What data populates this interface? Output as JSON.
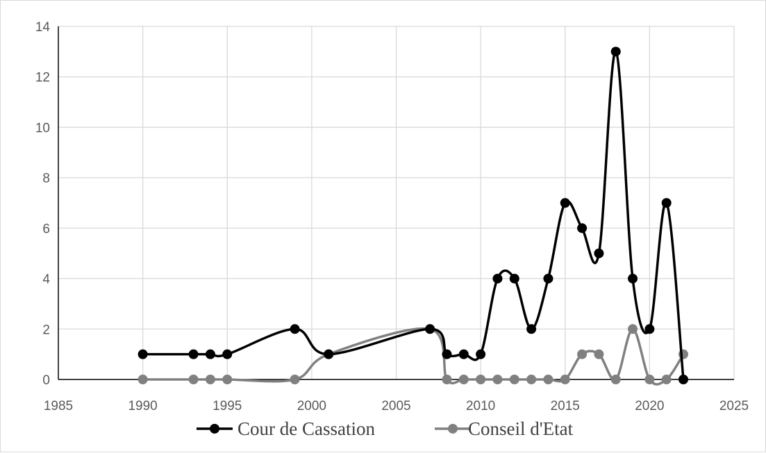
{
  "chart_data": {
    "type": "line",
    "title": "",
    "xlabel": "",
    "ylabel": "",
    "xlim": [
      1985,
      2025
    ],
    "ylim": [
      0,
      14
    ],
    "x_ticks": [
      1985,
      1990,
      1995,
      2000,
      2005,
      2010,
      2015,
      2020,
      2025
    ],
    "y_ticks": [
      0,
      2,
      4,
      6,
      8,
      10,
      12,
      14
    ],
    "x_tick_labels": [
      "1985",
      "1990",
      "1995",
      "2000",
      "2005",
      "2010",
      "2015",
      "2020",
      "2025"
    ],
    "y_tick_labels": [
      "0",
      "2",
      "4",
      "6",
      "8",
      "10",
      "12",
      "14"
    ],
    "grid": true,
    "smooth": true,
    "legend_position": "bottom",
    "series": [
      {
        "name": "Cour de Cassation",
        "color": "#000000",
        "points": [
          [
            1990,
            1
          ],
          [
            1993,
            1
          ],
          [
            1994,
            1
          ],
          [
            1995,
            1
          ],
          [
            1999,
            2
          ],
          [
            2001,
            1
          ],
          [
            2007,
            2
          ],
          [
            2008,
            1
          ],
          [
            2009,
            1
          ],
          [
            2010,
            1
          ],
          [
            2011,
            4
          ],
          [
            2012,
            4
          ],
          [
            2013,
            2
          ],
          [
            2014,
            4
          ],
          [
            2015,
            7
          ],
          [
            2016,
            6
          ],
          [
            2017,
            5
          ],
          [
            2018,
            13
          ],
          [
            2019,
            4
          ],
          [
            2020,
            2
          ],
          [
            2021,
            7
          ],
          [
            2022,
            0
          ]
        ]
      },
      {
        "name": "Conseil d'Etat",
        "color": "#808080",
        "points": [
          [
            1990,
            0
          ],
          [
            1993,
            0
          ],
          [
            1994,
            0
          ],
          [
            1995,
            0
          ],
          [
            1999,
            0
          ],
          [
            2001,
            1
          ],
          [
            2007,
            2
          ],
          [
            2008,
            0
          ],
          [
            2009,
            0
          ],
          [
            2010,
            0
          ],
          [
            2011,
            0
          ],
          [
            2012,
            0
          ],
          [
            2013,
            0
          ],
          [
            2014,
            0
          ],
          [
            2015,
            0
          ],
          [
            2016,
            1
          ],
          [
            2017,
            1
          ],
          [
            2018,
            0
          ],
          [
            2019,
            2
          ],
          [
            2020,
            0
          ],
          [
            2021,
            0
          ],
          [
            2022,
            1
          ]
        ]
      }
    ]
  }
}
